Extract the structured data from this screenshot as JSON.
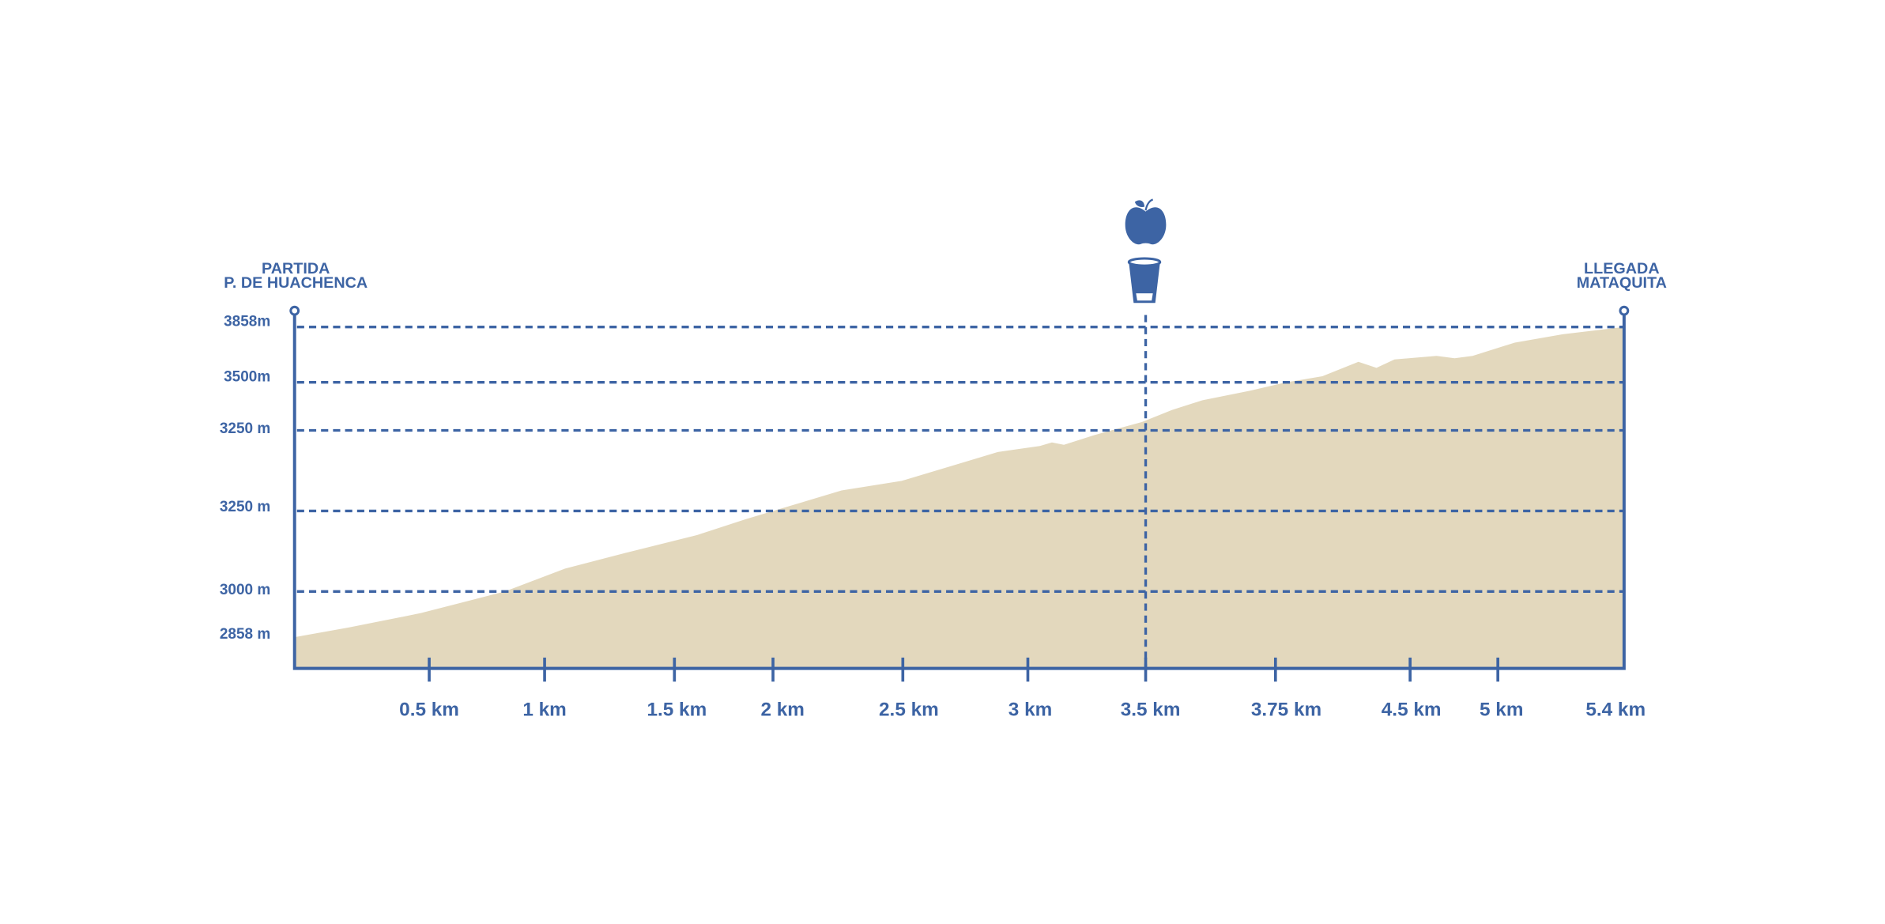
{
  "start": {
    "lines": [
      "PARTIDA",
      "P. DE HUACHENCA"
    ]
  },
  "end": {
    "lines": [
      "LLEGADA",
      "MATAQUITA"
    ]
  },
  "elevation_labels": [
    "3858m",
    "3500m",
    "3250 m",
    "3250 m",
    "3000 m",
    "2858 m"
  ],
  "distance_labels": [
    "0.5 km",
    "1 km",
    "1.5 km",
    "2 km",
    "2.5 km",
    "3 km",
    "3.5 km",
    "3.75 km",
    "4.5 km",
    "5 km",
    "5.4 km"
  ]
}
